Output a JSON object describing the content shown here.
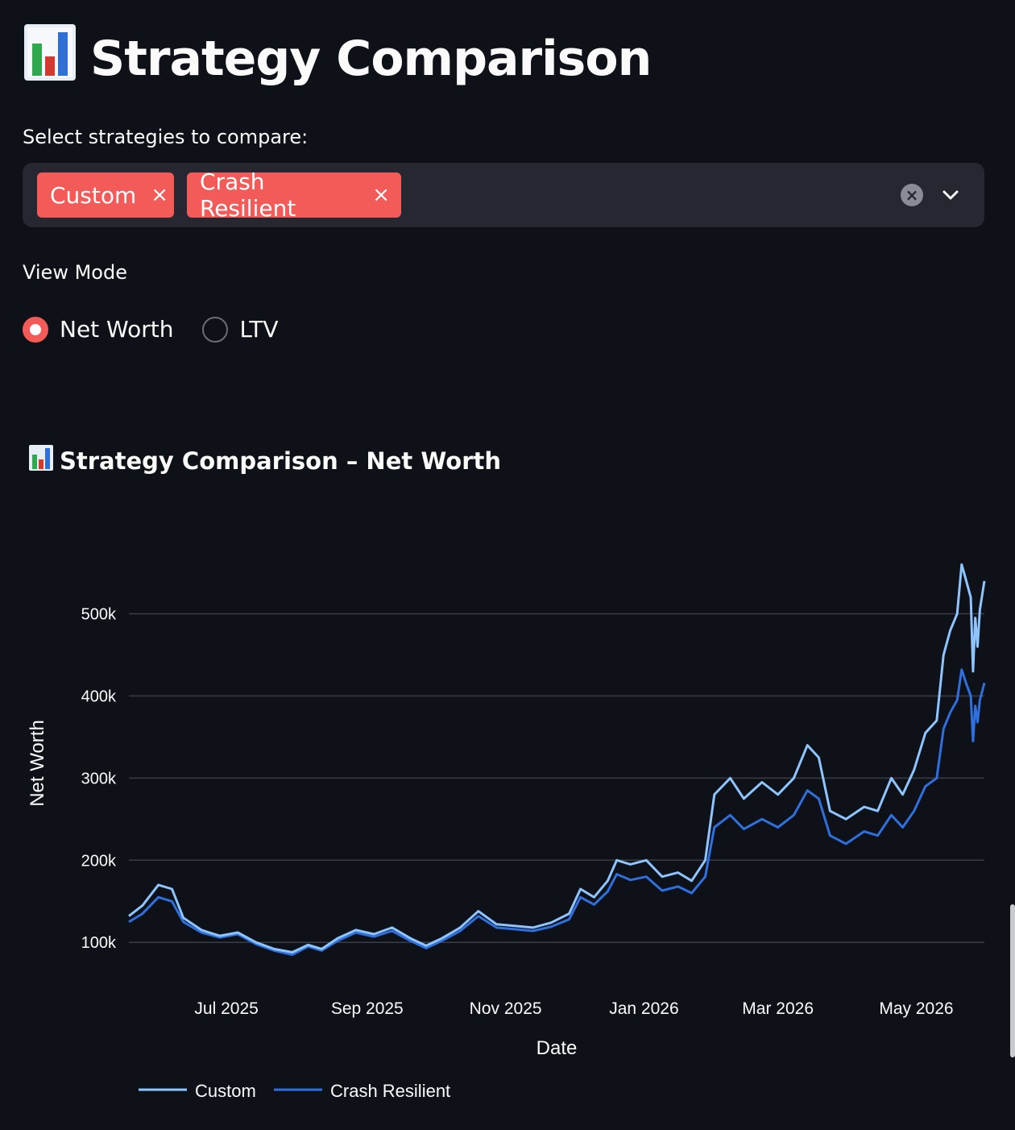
{
  "header": {
    "title": "Strategy Comparison",
    "icon": "bar-chart-icon"
  },
  "strategy_select": {
    "label": "Select strategies to compare:",
    "selected": [
      "Custom",
      "Crash Resilient"
    ],
    "remove_symbol": "×"
  },
  "view_mode": {
    "label": "View Mode",
    "options": [
      "Net Worth",
      "LTV"
    ],
    "selected": "Net Worth"
  },
  "colors": {
    "accent": "#f35b58",
    "background": "#0e1117",
    "custom_series": "#8ec5ff",
    "crash_series": "#2f6fde"
  },
  "chart_title": "Strategy Comparison – Net Worth",
  "chart_data": {
    "type": "line",
    "title": "Strategy Comparison – Net Worth",
    "xlabel": "Date",
    "ylabel": "Net Worth",
    "x_ticks": [
      "Jul 2025",
      "Sep 2025",
      "Nov 2025",
      "Jan 2026",
      "Mar 2026",
      "May 2026"
    ],
    "y_ticks": [
      "100k",
      "200k",
      "300k",
      "400k",
      "500k"
    ],
    "ylim": [
      60000,
      580000
    ],
    "x_range": [
      "2025-05-19",
      "2026-05-31"
    ],
    "grid": true,
    "legend_position": "bottom-left",
    "series": [
      {
        "name": "Custom",
        "color": "#8ec5ff",
        "points": [
          [
            "2025-05-19",
            132000
          ],
          [
            "2025-05-25",
            145000
          ],
          [
            "2025-06-01",
            170000
          ],
          [
            "2025-06-07",
            165000
          ],
          [
            "2025-06-12",
            130000
          ],
          [
            "2025-06-20",
            115000
          ],
          [
            "2025-06-28",
            108000
          ],
          [
            "2025-07-06",
            112000
          ],
          [
            "2025-07-14",
            100000
          ],
          [
            "2025-07-22",
            92000
          ],
          [
            "2025-07-30",
            88000
          ],
          [
            "2025-08-06",
            97000
          ],
          [
            "2025-08-12",
            92000
          ],
          [
            "2025-08-19",
            105000
          ],
          [
            "2025-08-27",
            115000
          ],
          [
            "2025-09-04",
            110000
          ],
          [
            "2025-09-12",
            118000
          ],
          [
            "2025-09-20",
            105000
          ],
          [
            "2025-09-27",
            96000
          ],
          [
            "2025-10-04",
            105000
          ],
          [
            "2025-10-12",
            118000
          ],
          [
            "2025-10-20",
            138000
          ],
          [
            "2025-10-28",
            122000
          ],
          [
            "2025-11-05",
            120000
          ],
          [
            "2025-11-13",
            118000
          ],
          [
            "2025-11-21",
            124000
          ],
          [
            "2025-11-29",
            135000
          ],
          [
            "2025-12-04",
            165000
          ],
          [
            "2025-12-10",
            155000
          ],
          [
            "2025-12-16",
            175000
          ],
          [
            "2025-12-20",
            200000
          ],
          [
            "2025-12-26",
            195000
          ],
          [
            "2026-01-02",
            200000
          ],
          [
            "2026-01-09",
            180000
          ],
          [
            "2026-01-16",
            185000
          ],
          [
            "2026-01-22",
            175000
          ],
          [
            "2026-01-28",
            200000
          ],
          [
            "2026-02-01",
            280000
          ],
          [
            "2026-02-08",
            300000
          ],
          [
            "2026-02-14",
            275000
          ],
          [
            "2026-02-22",
            295000
          ],
          [
            "2026-03-01",
            280000
          ],
          [
            "2026-03-08",
            300000
          ],
          [
            "2026-03-14",
            340000
          ],
          [
            "2026-03-19",
            325000
          ],
          [
            "2026-03-24",
            260000
          ],
          [
            "2026-03-31",
            250000
          ],
          [
            "2026-04-08",
            265000
          ],
          [
            "2026-04-14",
            260000
          ],
          [
            "2026-04-20",
            300000
          ],
          [
            "2026-04-25",
            280000
          ],
          [
            "2026-04-30",
            310000
          ],
          [
            "2026-05-05",
            355000
          ],
          [
            "2026-05-10",
            370000
          ],
          [
            "2026-05-13",
            450000
          ],
          [
            "2026-05-16",
            480000
          ],
          [
            "2026-05-19",
            500000
          ],
          [
            "2026-05-21",
            560000
          ],
          [
            "2026-05-23",
            540000
          ],
          [
            "2026-05-25",
            520000
          ],
          [
            "2026-05-26",
            430000
          ],
          [
            "2026-05-27",
            495000
          ],
          [
            "2026-05-28",
            460000
          ],
          [
            "2026-05-29",
            505000
          ],
          [
            "2026-05-31",
            540000
          ]
        ]
      },
      {
        "name": "Crash Resilient",
        "color": "#2f6fde",
        "points": [
          [
            "2025-05-19",
            125000
          ],
          [
            "2025-05-25",
            135000
          ],
          [
            "2025-06-01",
            155000
          ],
          [
            "2025-06-07",
            150000
          ],
          [
            "2025-06-12",
            125000
          ],
          [
            "2025-06-20",
            112000
          ],
          [
            "2025-06-28",
            106000
          ],
          [
            "2025-07-06",
            110000
          ],
          [
            "2025-07-14",
            98000
          ],
          [
            "2025-07-22",
            90000
          ],
          [
            "2025-07-30",
            85000
          ],
          [
            "2025-08-06",
            95000
          ],
          [
            "2025-08-12",
            90000
          ],
          [
            "2025-08-19",
            102000
          ],
          [
            "2025-08-27",
            112000
          ],
          [
            "2025-09-04",
            107000
          ],
          [
            "2025-09-12",
            114000
          ],
          [
            "2025-09-20",
            102000
          ],
          [
            "2025-09-27",
            93000
          ],
          [
            "2025-10-04",
            102000
          ],
          [
            "2025-10-12",
            114000
          ],
          [
            "2025-10-20",
            132000
          ],
          [
            "2025-10-28",
            118000
          ],
          [
            "2025-11-05",
            116000
          ],
          [
            "2025-11-13",
            114000
          ],
          [
            "2025-11-21",
            119000
          ],
          [
            "2025-11-29",
            128000
          ],
          [
            "2025-12-04",
            155000
          ],
          [
            "2025-12-10",
            146000
          ],
          [
            "2025-12-16",
            162000
          ],
          [
            "2025-12-20",
            183000
          ],
          [
            "2025-12-26",
            176000
          ],
          [
            "2026-01-02",
            180000
          ],
          [
            "2026-01-09",
            163000
          ],
          [
            "2026-01-16",
            168000
          ],
          [
            "2026-01-22",
            160000
          ],
          [
            "2026-01-28",
            180000
          ],
          [
            "2026-02-01",
            240000
          ],
          [
            "2026-02-08",
            255000
          ],
          [
            "2026-02-14",
            238000
          ],
          [
            "2026-02-22",
            250000
          ],
          [
            "2026-03-01",
            240000
          ],
          [
            "2026-03-08",
            255000
          ],
          [
            "2026-03-14",
            285000
          ],
          [
            "2026-03-19",
            275000
          ],
          [
            "2026-03-24",
            230000
          ],
          [
            "2026-03-31",
            220000
          ],
          [
            "2026-04-08",
            235000
          ],
          [
            "2026-04-14",
            230000
          ],
          [
            "2026-04-20",
            255000
          ],
          [
            "2026-04-25",
            240000
          ],
          [
            "2026-04-30",
            260000
          ],
          [
            "2026-05-05",
            290000
          ],
          [
            "2026-05-10",
            300000
          ],
          [
            "2026-05-13",
            360000
          ],
          [
            "2026-05-16",
            380000
          ],
          [
            "2026-05-19",
            395000
          ],
          [
            "2026-05-21",
            432000
          ],
          [
            "2026-05-23",
            415000
          ],
          [
            "2026-05-25",
            400000
          ],
          [
            "2026-05-26",
            345000
          ],
          [
            "2026-05-27",
            388000
          ],
          [
            "2026-05-28",
            368000
          ],
          [
            "2026-05-29",
            395000
          ],
          [
            "2026-05-31",
            416000
          ]
        ]
      }
    ]
  }
}
